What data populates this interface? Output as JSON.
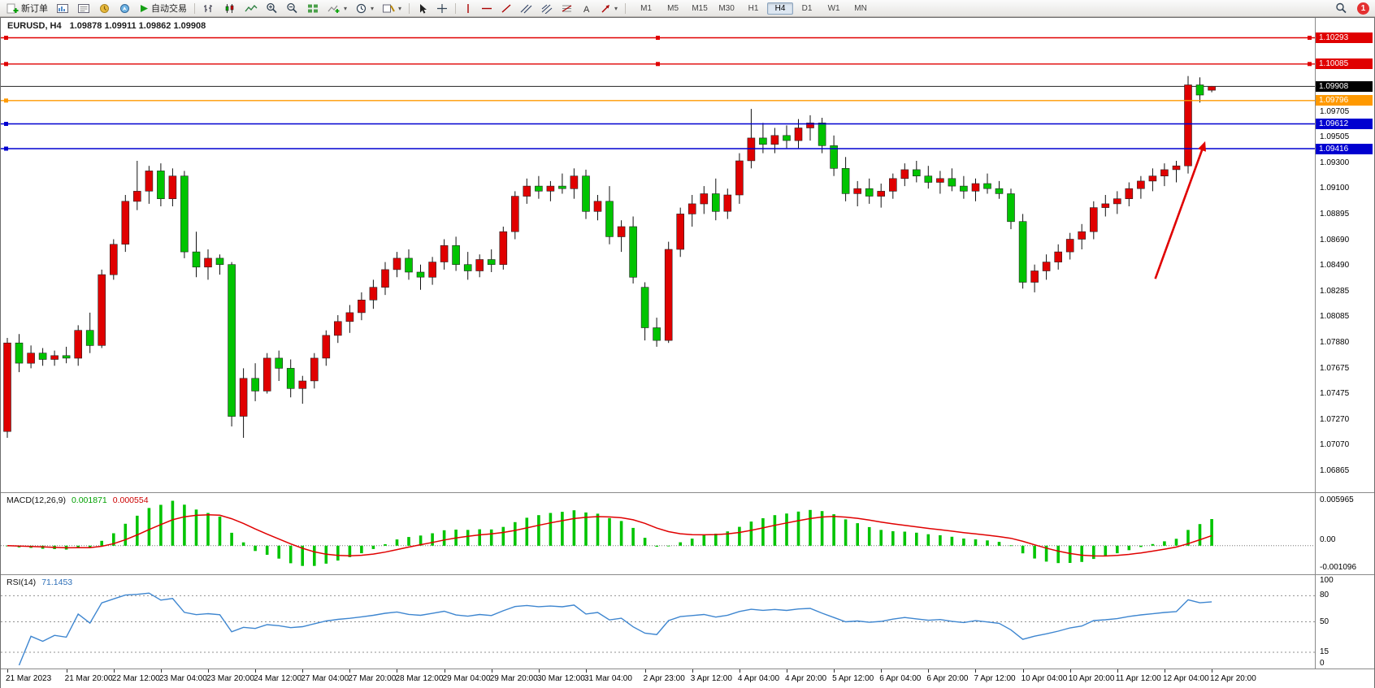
{
  "window": {
    "badge_count": "1"
  },
  "toolbar": {
    "new_order_label": "新订单",
    "auto_trading_label": "自动交易",
    "timeframes": [
      "M1",
      "M5",
      "M15",
      "M30",
      "H1",
      "H4",
      "D1",
      "W1",
      "MN"
    ],
    "active_timeframe": "H4",
    "icons": [
      "new-order",
      "charts-window",
      "data-window",
      "market-watch",
      "navigator",
      "auto-trading-play",
      "bar-chart",
      "candlestick-chart",
      "line-chart",
      "zoom-in",
      "zoom-out",
      "tile-windows",
      "indicators-add",
      "periods-clock",
      "templates",
      "cursor",
      "crosshair",
      "vertical-line",
      "horizontal-line",
      "trendline",
      "equidistant-channel",
      "andrews-pitchfork",
      "fibonacci-retracement",
      "text-label",
      "arrow-tools",
      "search",
      "notifications"
    ]
  },
  "chart_data": {
    "type": "candlestick",
    "title": "EURUSD, H4",
    "ohlc_display": "1.09878 1.09911 1.09862 1.09908",
    "ylim": [
      1.067,
      1.1045
    ],
    "up_color": "#e00000",
    "down_color": "#00c400",
    "wick_color": "#111111",
    "current_price": "1.09908",
    "price_axis_labels": [
      "1.09705",
      "1.09505",
      "1.09300",
      "1.09100",
      "1.08895",
      "1.08690",
      "1.08490",
      "1.08285",
      "1.08085",
      "1.07880",
      "1.07675",
      "1.07475",
      "1.07270",
      "1.07070",
      "1.06865"
    ],
    "levels": [
      {
        "price": "1.10293",
        "color": "#e00000",
        "handles": 3
      },
      {
        "price": "1.10085",
        "color": "#e00000",
        "handles": 3
      },
      {
        "price": "1.09796",
        "color": "#ff9900",
        "handles": 1
      },
      {
        "price": "1.09612",
        "color": "#0000d0",
        "handles": 1
      },
      {
        "price": "1.09416",
        "color": "#0000d0",
        "handles": 1
      }
    ],
    "arrow_annotation": {
      "color": "#e00000",
      "x1": 0.878,
      "y1": 0.55,
      "x2": 0.916,
      "y2": 0.26
    },
    "time_labels": [
      {
        "i": 0,
        "t": "21 Mar 2023"
      },
      {
        "i": 5,
        "t": "21 Mar 20:00"
      },
      {
        "i": 9,
        "t": "22 Mar 12:00"
      },
      {
        "i": 13,
        "t": "23 Mar 04:00"
      },
      {
        "i": 17,
        "t": "23 Mar 20:00"
      },
      {
        "i": 21,
        "t": "24 Mar 12:00"
      },
      {
        "i": 25,
        "t": "27 Mar 04:00"
      },
      {
        "i": 29,
        "t": "27 Mar 20:00"
      },
      {
        "i": 33,
        "t": "28 Mar 12:00"
      },
      {
        "i": 37,
        "t": "29 Mar 04:00"
      },
      {
        "i": 41,
        "t": "29 Mar 20:00"
      },
      {
        "i": 45,
        "t": "30 Mar 12:00"
      },
      {
        "i": 49,
        "t": "31 Mar 04:00"
      },
      {
        "i": 54,
        "t": "2 Apr 23:00"
      },
      {
        "i": 58,
        "t": "3 Apr 12:00"
      },
      {
        "i": 62,
        "t": "4 Apr 04:00"
      },
      {
        "i": 66,
        "t": "4 Apr 20:00"
      },
      {
        "i": 70,
        "t": "5 Apr 12:00"
      },
      {
        "i": 74,
        "t": "6 Apr 04:00"
      },
      {
        "i": 78,
        "t": "6 Apr 20:00"
      },
      {
        "i": 82,
        "t": "7 Apr 12:00"
      },
      {
        "i": 86,
        "t": "10 Apr 04:00"
      },
      {
        "i": 90,
        "t": "10 Apr 20:00"
      },
      {
        "i": 94,
        "t": "11 Apr 12:00"
      },
      {
        "i": 98,
        "t": "12 Apr 04:00"
      },
      {
        "i": 102,
        "t": "12 Apr 20:00"
      }
    ],
    "candles": [
      [
        1.0718,
        1.0792,
        1.0713,
        1.0788
      ],
      [
        1.0788,
        1.0795,
        1.0765,
        1.0772
      ],
      [
        1.0772,
        1.0786,
        1.0768,
        1.078
      ],
      [
        1.078,
        1.0784,
        1.077,
        1.0775
      ],
      [
        1.0775,
        1.0782,
        1.077,
        1.0778
      ],
      [
        1.0778,
        1.0785,
        1.0772,
        1.0776
      ],
      [
        1.0776,
        1.0802,
        1.077,
        1.0798
      ],
      [
        1.0798,
        1.0812,
        1.078,
        1.0786
      ],
      [
        1.0786,
        1.0846,
        1.0784,
        1.0842
      ],
      [
        1.0842,
        1.087,
        1.0838,
        1.0866
      ],
      [
        1.0866,
        1.0905,
        1.086,
        1.09
      ],
      [
        1.09,
        1.0932,
        1.0893,
        1.0908
      ],
      [
        1.0908,
        1.0928,
        1.0898,
        1.0924
      ],
      [
        1.0924,
        1.093,
        1.0896,
        1.0902
      ],
      [
        1.0902,
        1.0926,
        1.0896,
        1.092
      ],
      [
        1.092,
        1.0924,
        1.0855,
        1.086
      ],
      [
        1.086,
        1.0876,
        1.084,
        1.0848
      ],
      [
        1.0848,
        1.0862,
        1.0838,
        1.0855
      ],
      [
        1.0855,
        1.0858,
        1.0842,
        1.085
      ],
      [
        1.085,
        1.0852,
        1.0722,
        1.073
      ],
      [
        1.073,
        1.0768,
        1.0713,
        1.076
      ],
      [
        1.076,
        1.0772,
        1.0742,
        1.075
      ],
      [
        1.075,
        1.078,
        1.0748,
        1.0776
      ],
      [
        1.0776,
        1.0782,
        1.0758,
        1.0768
      ],
      [
        1.0768,
        1.0775,
        1.0745,
        1.0752
      ],
      [
        1.0752,
        1.0762,
        1.074,
        1.0758
      ],
      [
        1.0758,
        1.078,
        1.0752,
        1.0776
      ],
      [
        1.0776,
        1.0798,
        1.077,
        1.0794
      ],
      [
        1.0794,
        1.081,
        1.0788,
        1.0805
      ],
      [
        1.0805,
        1.0818,
        1.0796,
        1.0812
      ],
      [
        1.0812,
        1.0828,
        1.0806,
        1.0822
      ],
      [
        1.0822,
        1.0838,
        1.0815,
        1.0832
      ],
      [
        1.0832,
        1.0852,
        1.0826,
        1.0846
      ],
      [
        1.0846,
        1.086,
        1.084,
        1.0855
      ],
      [
        1.0855,
        1.0862,
        1.0838,
        1.0844
      ],
      [
        1.0844,
        1.085,
        1.083,
        1.084
      ],
      [
        1.084,
        1.0856,
        1.0834,
        1.0852
      ],
      [
        1.0852,
        1.087,
        1.0846,
        1.0865
      ],
      [
        1.0865,
        1.0872,
        1.0845,
        1.085
      ],
      [
        1.085,
        1.086,
        1.0838,
        1.0845
      ],
      [
        1.0845,
        1.0858,
        1.084,
        1.0854
      ],
      [
        1.0854,
        1.0862,
        1.0844,
        1.085
      ],
      [
        1.085,
        1.088,
        1.0846,
        1.0876
      ],
      [
        1.0876,
        1.0908,
        1.087,
        1.0904
      ],
      [
        1.0904,
        1.0918,
        1.0898,
        1.0912
      ],
      [
        1.0912,
        1.092,
        1.0902,
        1.0908
      ],
      [
        1.0908,
        1.0916,
        1.09,
        1.0912
      ],
      [
        1.0912,
        1.0922,
        1.0906,
        1.091
      ],
      [
        1.091,
        1.0926,
        1.0902,
        1.092
      ],
      [
        1.092,
        1.0925,
        1.0886,
        1.0892
      ],
      [
        1.0892,
        1.0905,
        1.0885,
        1.09
      ],
      [
        1.09,
        1.0912,
        1.0866,
        1.0872
      ],
      [
        1.0872,
        1.0885,
        1.086,
        1.088
      ],
      [
        1.088,
        1.0888,
        1.0835,
        1.084
      ],
      [
        1.0832,
        1.0836,
        1.079,
        1.08
      ],
      [
        1.08,
        1.0808,
        1.0785,
        1.079
      ],
      [
        1.079,
        1.0868,
        1.0788,
        1.0862
      ],
      [
        1.0862,
        1.0895,
        1.0856,
        1.089
      ],
      [
        1.089,
        1.0905,
        1.088,
        1.0898
      ],
      [
        1.0898,
        1.0912,
        1.089,
        1.0906
      ],
      [
        1.0906,
        1.0918,
        1.0885,
        1.0892
      ],
      [
        1.0892,
        1.091,
        1.0886,
        1.0905
      ],
      [
        1.0905,
        1.0938,
        1.0898,
        1.0932
      ],
      [
        1.0932,
        1.0973,
        1.0926,
        1.095
      ],
      [
        1.095,
        1.0962,
        1.0938,
        1.0945
      ],
      [
        1.0945,
        1.0958,
        1.0938,
        1.0952
      ],
      [
        1.0952,
        1.096,
        1.0942,
        1.0948
      ],
      [
        1.0948,
        1.0965,
        1.0942,
        1.0958
      ],
      [
        1.0958,
        1.0968,
        1.0948,
        1.0962
      ],
      [
        1.0962,
        1.0966,
        1.0938,
        1.0944
      ],
      [
        1.0944,
        1.0952,
        1.092,
        1.0926
      ],
      [
        1.0926,
        1.0935,
        1.09,
        1.0906
      ],
      [
        1.0906,
        1.0916,
        1.0896,
        1.091
      ],
      [
        1.091,
        1.0918,
        1.0898,
        1.0904
      ],
      [
        1.0904,
        1.0914,
        1.0895,
        1.0908
      ],
      [
        1.0908,
        1.0922,
        1.0902,
        1.0918
      ],
      [
        1.0918,
        1.093,
        1.0912,
        1.0925
      ],
      [
        1.0925,
        1.0932,
        1.0915,
        1.092
      ],
      [
        1.092,
        1.0928,
        1.091,
        1.0915
      ],
      [
        1.0915,
        1.0924,
        1.0906,
        1.0918
      ],
      [
        1.0918,
        1.0926,
        1.0908,
        1.0912
      ],
      [
        1.0912,
        1.092,
        1.0902,
        1.0908
      ],
      [
        1.0908,
        1.0918,
        1.09,
        1.0914
      ],
      [
        1.0914,
        1.0922,
        1.0906,
        1.091
      ],
      [
        1.091,
        1.0916,
        1.0902,
        1.0906
      ],
      [
        1.0906,
        1.091,
        1.0878,
        1.0884
      ],
      [
        1.0884,
        1.089,
        1.0831,
        1.0836
      ],
      [
        1.0836,
        1.085,
        1.0828,
        1.0845
      ],
      [
        1.0845,
        1.0858,
        1.0838,
        1.0852
      ],
      [
        1.0852,
        1.0866,
        1.0846,
        1.086
      ],
      [
        1.086,
        1.0875,
        1.0854,
        1.087
      ],
      [
        1.087,
        1.0882,
        1.0862,
        1.0876
      ],
      [
        1.0876,
        1.09,
        1.087,
        1.0895
      ],
      [
        1.0895,
        1.0905,
        1.0888,
        1.0898
      ],
      [
        1.0898,
        1.0908,
        1.089,
        1.0902
      ],
      [
        1.0902,
        1.0915,
        1.0896,
        1.091
      ],
      [
        1.091,
        1.092,
        1.0902,
        1.0916
      ],
      [
        1.0916,
        1.0926,
        1.0908,
        1.092
      ],
      [
        1.092,
        1.093,
        1.0912,
        1.0925
      ],
      [
        1.0925,
        1.0932,
        1.0915,
        1.0928
      ],
      [
        1.0928,
        1.0999,
        1.0922,
        1.0992
      ],
      [
        1.0992,
        1.0998,
        1.0978,
        1.0984
      ],
      [
        1.09878,
        1.09911,
        1.09862,
        1.09908
      ]
    ],
    "indicators": [
      {
        "type": "macd",
        "label": "MACD(12,26,9)",
        "values": [
          "0.001871",
          "0.000554"
        ],
        "axis_labels": [
          "0.005965",
          "0.00",
          "-0.001096"
        ],
        "histogram_color": "#00c400",
        "signal_color": "#e00000",
        "params": [
          12,
          26,
          9
        ]
      },
      {
        "type": "rsi",
        "label": "RSI(14)",
        "value": "71.1453",
        "axis_labels": [
          "100",
          "80",
          "50",
          "15",
          "0"
        ],
        "levels": [
          80,
          50,
          15
        ],
        "line_color": "#3e86d0",
        "params": [
          14
        ]
      }
    ]
  }
}
